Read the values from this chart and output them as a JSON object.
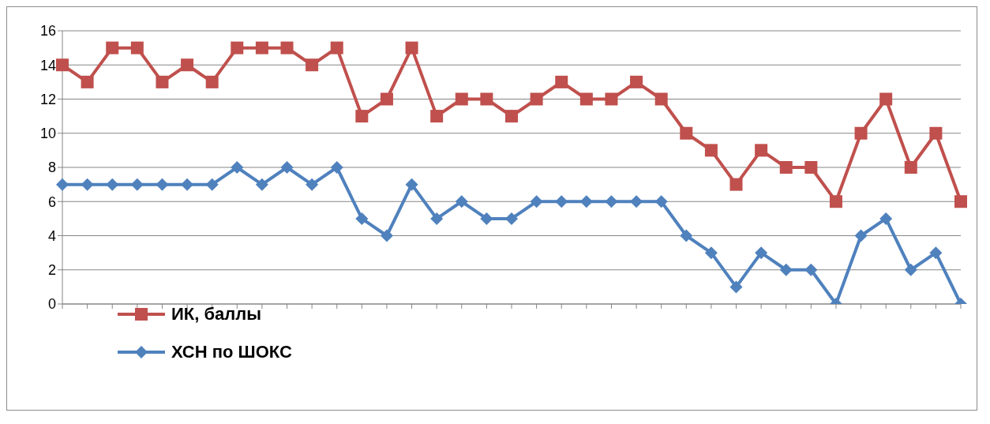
{
  "chart_data": {
    "type": "line",
    "categories": [
      null,
      null,
      null,
      null,
      null,
      null,
      null,
      null,
      null,
      null,
      null,
      null,
      null,
      null,
      null,
      null,
      null,
      null,
      null,
      null,
      null,
      null,
      null,
      null,
      null,
      null,
      null,
      null,
      null,
      null,
      null,
      null,
      null,
      null,
      null,
      null,
      null
    ],
    "series": [
      {
        "name": "ИК, баллы",
        "color": "#c0504d",
        "marker": "square",
        "values": [
          14,
          13,
          15,
          15,
          13,
          14,
          13,
          15,
          15,
          15,
          14,
          15,
          11,
          12,
          15,
          11,
          12,
          12,
          11,
          12,
          13,
          12,
          12,
          13,
          12,
          10,
          9,
          7,
          9,
          8,
          8,
          6,
          10,
          12,
          8,
          10,
          6
        ]
      },
      {
        "name": "ХСН по ШОКС",
        "color": "#4f81bd",
        "marker": "diamond",
        "values": [
          7,
          7,
          7,
          7,
          7,
          7,
          7,
          8,
          7,
          8,
          7,
          8,
          5,
          4,
          7,
          5,
          6,
          5,
          5,
          6,
          6,
          6,
          6,
          6,
          6,
          4,
          3,
          1,
          3,
          2,
          2,
          0,
          4,
          5,
          2,
          3,
          0
        ]
      }
    ],
    "ylim": [
      0,
      16
    ],
    "yticks": [
      0,
      2,
      4,
      6,
      8,
      10,
      12,
      14,
      16
    ],
    "grid": "y",
    "legend": "bottom left",
    "line_style": "solid"
  }
}
